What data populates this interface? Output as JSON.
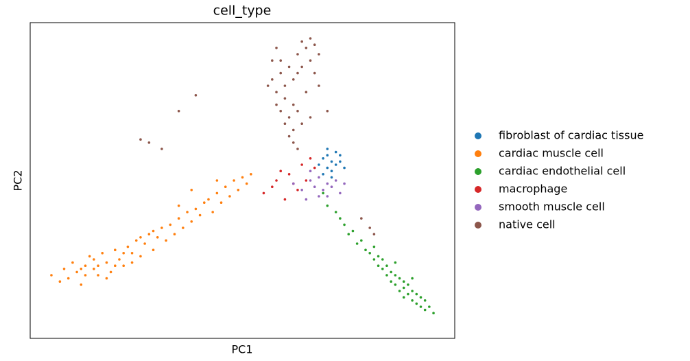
{
  "chart_data": {
    "type": "scatter",
    "title": "cell_type",
    "x_label": "PC1",
    "y_label": "PC2",
    "xlim": [
      0,
      100
    ],
    "ylim": [
      0,
      100
    ],
    "series": [
      {
        "name": "fibroblast of cardiac tissue",
        "color": "#1f77b4",
        "x": [
          68,
          69,
          70,
          70,
          71,
          71,
          72,
          72,
          73,
          69,
          70,
          74,
          71,
          73
        ],
        "y": [
          55,
          57,
          54,
          58,
          56,
          53,
          55,
          59,
          56,
          52,
          60,
          54,
          51,
          58
        ]
      },
      {
        "name": "cardiac muscle cell",
        "color": "#ff7f0e",
        "x": [
          5,
          7,
          8,
          9,
          10,
          11,
          12,
          13,
          14,
          15,
          16,
          17,
          18,
          19,
          20,
          21,
          22,
          23,
          24,
          25,
          26,
          27,
          28,
          29,
          30,
          31,
          32,
          33,
          34,
          35,
          36,
          37,
          38,
          39,
          40,
          41,
          42,
          43,
          44,
          45,
          46,
          47,
          48,
          49,
          50,
          51,
          52,
          13,
          15,
          18,
          20,
          22,
          12,
          16,
          24,
          26,
          29,
          35,
          38,
          44
        ],
        "y": [
          20,
          18,
          22,
          19,
          24,
          21,
          17,
          23,
          26,
          22,
          20,
          27,
          24,
          21,
          28,
          25,
          23,
          29,
          27,
          31,
          26,
          30,
          33,
          28,
          32,
          35,
          31,
          36,
          33,
          38,
          35,
          40,
          37,
          41,
          39,
          43,
          44,
          40,
          46,
          43,
          48,
          45,
          50,
          47,
          51,
          49,
          52,
          20,
          25,
          19,
          23,
          27,
          22,
          23,
          24,
          32,
          34,
          42,
          47,
          50
        ]
      },
      {
        "name": "cardiac endothelial cell",
        "color": "#2ca02c",
        "x": [
          69,
          70,
          72,
          73,
          74,
          75,
          76,
          77,
          78,
          79,
          80,
          81,
          81,
          82,
          82,
          83,
          83,
          84,
          84,
          85,
          85,
          86,
          86,
          87,
          87,
          88,
          88,
          88,
          89,
          89,
          90,
          90,
          91,
          91,
          92,
          92,
          93,
          93,
          94,
          95,
          86,
          90
        ],
        "y": [
          46,
          42,
          40,
          38,
          36,
          33,
          34,
          30,
          31,
          28,
          27,
          25,
          29,
          23,
          26,
          22,
          25,
          20,
          23,
          18,
          21,
          17,
          20,
          15,
          19,
          16,
          18,
          13,
          14,
          17,
          12,
          15,
          11,
          14,
          10,
          13,
          9,
          12,
          10,
          8,
          24,
          19
        ]
      },
      {
        "name": "macrophage",
        "color": "#d62728",
        "x": [
          55,
          57,
          58,
          60,
          61,
          63,
          64,
          66,
          65,
          59,
          62,
          67
        ],
        "y": [
          46,
          48,
          50,
          44,
          52,
          47,
          55,
          57,
          50,
          53,
          49,
          54
        ]
      },
      {
        "name": "smooth muscle cell",
        "color": "#9467bd",
        "x": [
          62,
          64,
          66,
          67,
          68,
          69,
          70,
          71,
          72,
          73,
          70,
          66,
          68,
          74,
          65
        ],
        "y": [
          49,
          47,
          50,
          48,
          51,
          47,
          49,
          48,
          50,
          46,
          45,
          53,
          45,
          49,
          44
        ]
      },
      {
        "name": "native cell",
        "color": "#8c564b",
        "x": [
          58,
          57,
          59,
          56,
          58,
          60,
          59,
          61,
          60,
          62,
          61,
          62,
          63,
          58,
          60,
          62,
          63,
          64,
          57,
          59,
          61,
          63,
          64,
          65,
          66,
          67,
          68,
          66,
          64,
          67,
          68,
          65,
          62,
          63,
          70,
          66,
          26,
          28,
          31,
          35,
          39,
          78,
          80,
          81
        ],
        "y": [
          92,
          88,
          84,
          80,
          78,
          76,
          72,
          70,
          68,
          66,
          64,
          62,
          60,
          74,
          80,
          74,
          72,
          68,
          82,
          88,
          86,
          90,
          94,
          92,
          95,
          93,
          90,
          88,
          86,
          84,
          80,
          78,
          82,
          84,
          72,
          70,
          63,
          62,
          60,
          72,
          77,
          38,
          35,
          33
        ]
      }
    ]
  }
}
